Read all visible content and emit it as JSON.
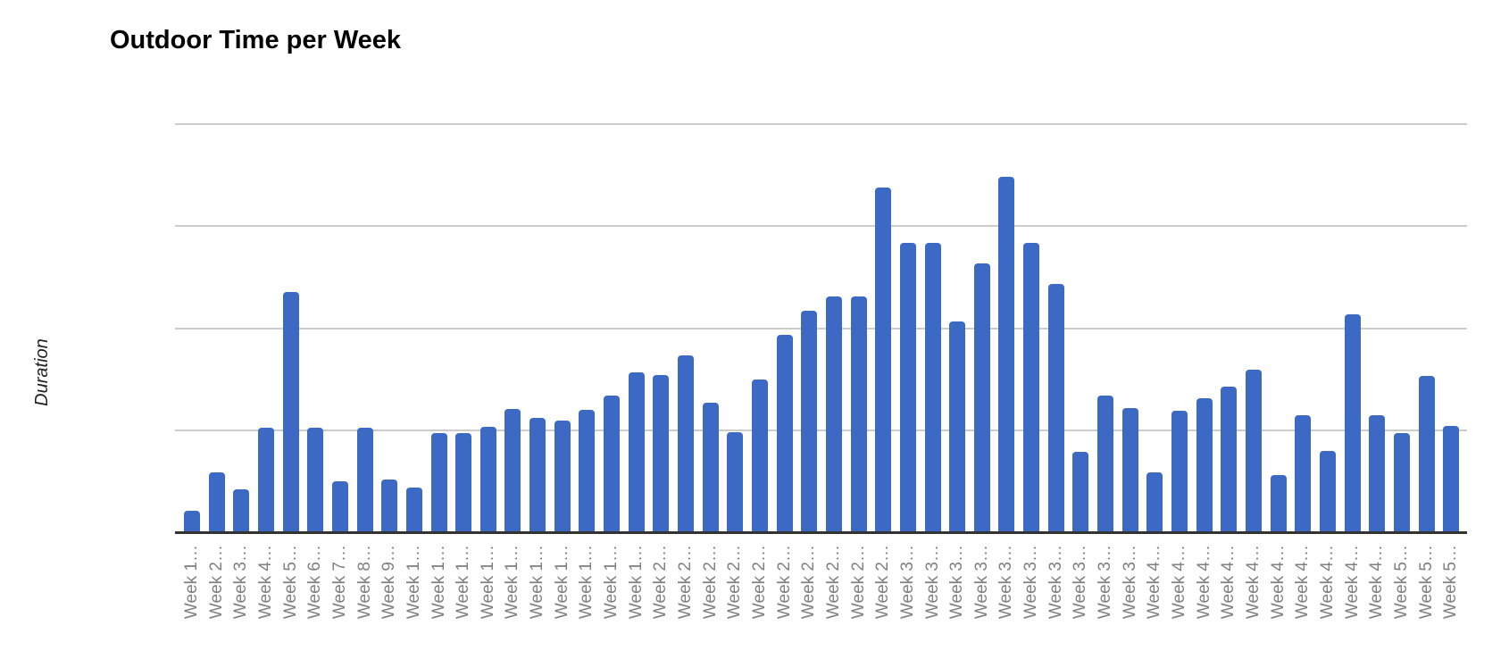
{
  "chart_data": {
    "type": "bar",
    "title": "Outdoor Time per Week",
    "xlabel": "",
    "ylabel": "Duration",
    "legend_position": "none",
    "grid": "horizontal gridlines on, no y tick labels visible",
    "y_axis": {
      "tick_labels_visible": false,
      "gridline_count": 4,
      "ylim_gridline_units": [
        0,
        4
      ]
    },
    "value_units": "gridline units (1.0 = one horizontal gridline interval; y-axis shows no numeric labels)",
    "categories": [
      "Week 1…",
      "Week 2…",
      "Week 3…",
      "Week 4…",
      "Week 5…",
      "Week 6…",
      "Week 7…",
      "Week 8…",
      "Week 9…",
      "Week 1…",
      "Week 1…",
      "Week 1…",
      "Week 1…",
      "Week 1…",
      "Week 1…",
      "Week 1…",
      "Week 1…",
      "Week 1…",
      "Week 1…",
      "Week 2…",
      "Week 2…",
      "Week 2…",
      "Week 2…",
      "Week 2…",
      "Week 2…",
      "Week 2…",
      "Week 2…",
      "Week 2…",
      "Week 2…",
      "Week 3…",
      "Week 3…",
      "Week 3…",
      "Week 3…",
      "Week 3…",
      "Week 3…",
      "Week 3…",
      "Week 3…",
      "Week 3…",
      "Week 3…",
      "Week 4…",
      "Week 4…",
      "Week 4…",
      "Week 4…",
      "Week 4…",
      "Week 4…",
      "Week 4…",
      "Week 4…",
      "Week 4…",
      "Week 4…",
      "Week 5…",
      "Week 5…",
      "Week 5…"
    ],
    "values": [
      0.21,
      0.59,
      0.42,
      1.02,
      2.35,
      1.02,
      0.5,
      1.02,
      0.52,
      0.44,
      0.97,
      0.97,
      1.03,
      1.21,
      1.12,
      1.09,
      1.2,
      1.34,
      1.57,
      1.54,
      1.73,
      1.27,
      0.98,
      1.5,
      1.93,
      2.17,
      2.31,
      2.31,
      3.38,
      2.83,
      2.83,
      2.06,
      2.63,
      3.48,
      2.83,
      2.43,
      0.79,
      1.34,
      1.22,
      0.59,
      1.19,
      1.31,
      1.43,
      1.59,
      0.56,
      1.15,
      0.8,
      2.13,
      1.15,
      0.97,
      1.53,
      1.04
    ],
    "colors": {
      "bar": "#3C69C4",
      "gridline": "#CCCCCC",
      "axis_line": "#333333",
      "tick_label": "#808080",
      "title": "#000000",
      "axis_title": "#212121",
      "background": "#FFFFFF"
    }
  }
}
